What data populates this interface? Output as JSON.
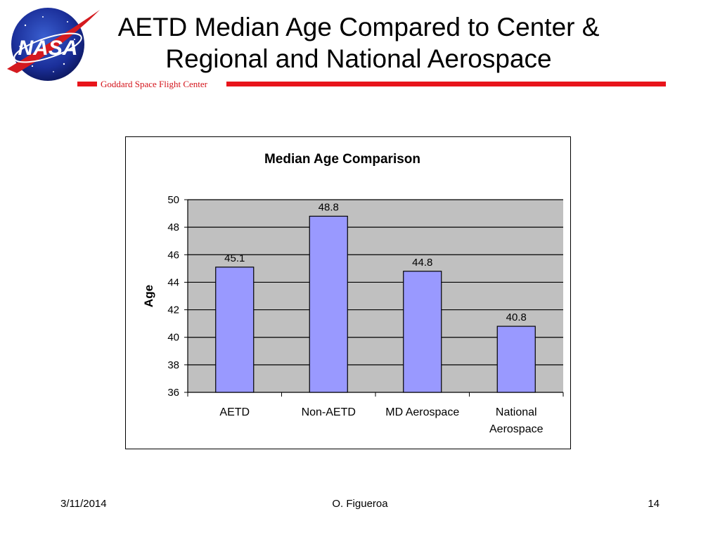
{
  "slide": {
    "title_line1": "AETD Median Age Compared to Center &",
    "title_line2": "Regional and National Aerospace",
    "center_name": "Goddard Space Flight Center",
    "logo_text": "NASA",
    "footer": {
      "date": "3/11/2014",
      "author": "O. Figueroa",
      "page": "14"
    }
  },
  "colors": {
    "bar_fill": "#9999ff",
    "plot_bg": "#c0c0c0",
    "rule_red": "#e8141b"
  },
  "chart_data": {
    "type": "bar",
    "title": "Median Age Comparison",
    "xlabel": "",
    "ylabel": "Age",
    "categories": [
      [
        "AETD"
      ],
      [
        "Non-AETD"
      ],
      [
        "MD Aerospace"
      ],
      [
        "National",
        "Aerospace"
      ]
    ],
    "values": [
      45.1,
      48.8,
      44.8,
      40.8
    ],
    "value_labels": [
      "45.1",
      "48.8",
      "44.8",
      "40.8"
    ],
    "ylim": [
      36,
      50
    ],
    "yticks": [
      36,
      38,
      40,
      42,
      44,
      46,
      48,
      50
    ],
    "grid": true,
    "legend": "none"
  }
}
